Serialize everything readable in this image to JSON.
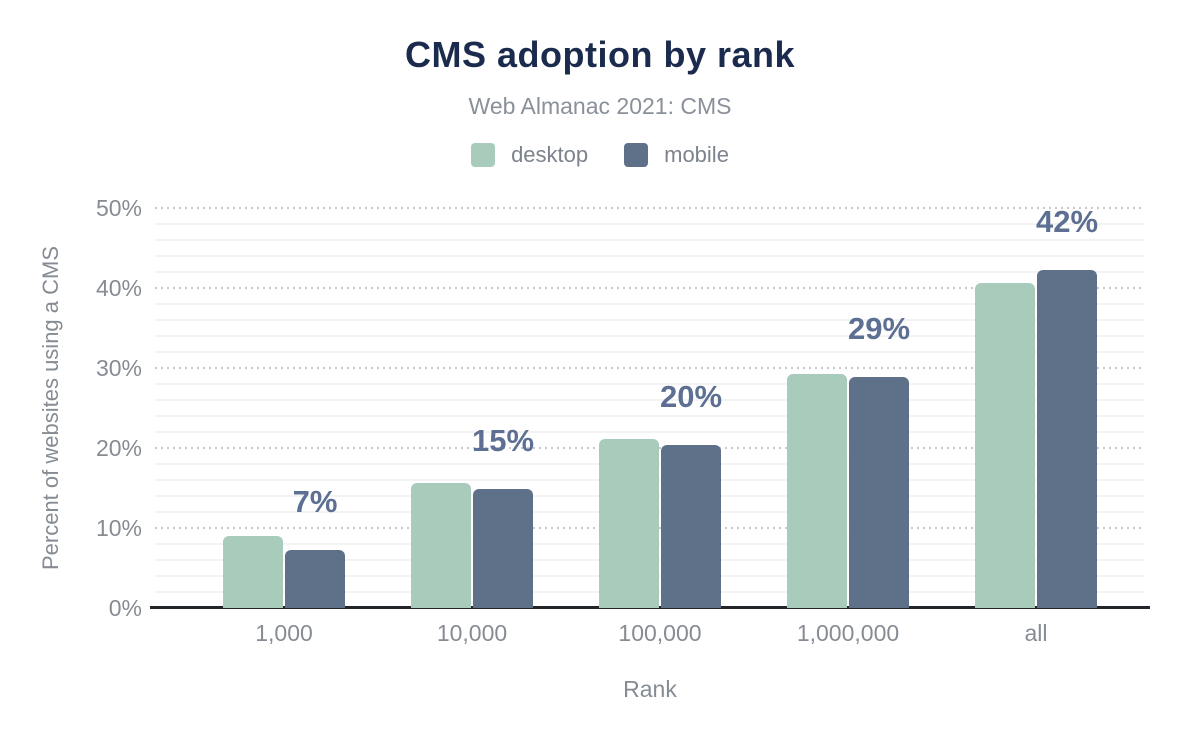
{
  "header": {
    "title": "CMS adoption by rank",
    "subtitle": "Web Almanac 2021: CMS"
  },
  "chart_data": {
    "type": "bar",
    "title": "CMS adoption by rank",
    "subtitle": "Web Almanac 2021: CMS",
    "categories": [
      "1,000",
      "10,000",
      "100,000",
      "1,000,000",
      "all"
    ],
    "series": [
      {
        "name": "desktop",
        "color": "#a9cbbb",
        "values": [
          9.0,
          15.6,
          21.1,
          29.2,
          40.6
        ]
      },
      {
        "name": "mobile",
        "color": "#5f7189",
        "values": [
          7.3,
          14.9,
          20.4,
          28.9,
          42.2
        ]
      }
    ],
    "data_labels": {
      "above_series": "mobile",
      "labels": [
        "7%",
        "15%",
        "20%",
        "29%",
        "42%"
      ],
      "color": "#5d7093"
    },
    "xlabel": "Rank",
    "ylabel": "Percent of websites using a CMS",
    "ylim": [
      0,
      50
    ],
    "yticks": [
      {
        "value": 0,
        "label": "0%"
      },
      {
        "value": 10,
        "label": "10%"
      },
      {
        "value": 20,
        "label": "20%"
      },
      {
        "value": 30,
        "label": "30%"
      },
      {
        "value": 40,
        "label": "40%"
      },
      {
        "value": 50,
        "label": "50%"
      }
    ],
    "minor_grid_step": 2,
    "grid": {
      "major": "dotted",
      "minor": "solid",
      "major_color": "#c9c9c9",
      "minor_color": "#f3f3f3"
    },
    "legend_position": "top",
    "axis_line_color": "#22262b",
    "title_color": "#1b2b4d",
    "text_color": "#868c94"
  }
}
